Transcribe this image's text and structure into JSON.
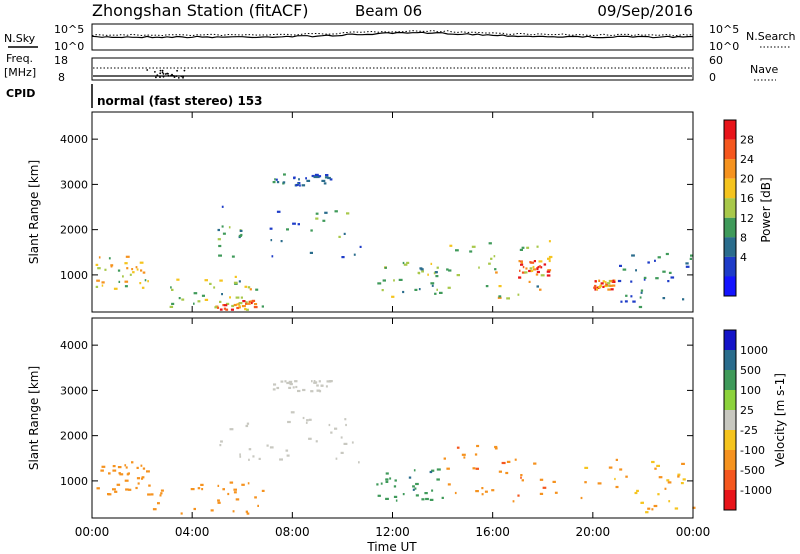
{
  "header": {
    "station": "Zhongshan Station (fitACF)",
    "beam": "Beam 06",
    "date": "09/Sep/2016"
  },
  "sky_panel": {
    "left_label": "N.Sky",
    "right_label": "N.Search",
    "ytick_top": "10^5",
    "ytick_bottom": "10^0"
  },
  "freq_panel": {
    "label_line1": "Freq.",
    "label_line2": "[MHz]",
    "ytick_top": "18",
    "ytick_bottom": "8",
    "right_label": "Nave",
    "right_tick_top": "60",
    "right_tick_bottom": "0"
  },
  "cpid": {
    "label": "CPID",
    "value": "normal (fast stereo) 153"
  },
  "power_colorbar": {
    "label": "Power [dB]",
    "ticks": [
      "28",
      "24",
      "20",
      "16",
      "12",
      "8",
      "4"
    ],
    "colors": [
      "#e8141a",
      "#f5571e",
      "#f5921e",
      "#f5c41e",
      "#a8c84a",
      "#3f9a5a",
      "#2a6c8c",
      "#1e3cc8",
      "#1414ff"
    ]
  },
  "velocity_colorbar": {
    "label": "Velocity [m s-1]",
    "ticks": [
      "1000",
      "500",
      "100",
      "25",
      "-25",
      "-100",
      "-500",
      "-1000"
    ],
    "colors": [
      "#1414c8",
      "#2a6c8c",
      "#3f9a5a",
      "#8cd23c",
      "#c8c8c0",
      "#f5c41e",
      "#f5921e",
      "#f5571e",
      "#e8141a"
    ]
  },
  "chart_data": {
    "type": "heatmap",
    "x_label": "Time UT",
    "y_label": "Slant Range [km]",
    "x_ticks": [
      "00:00",
      "04:00",
      "08:00",
      "12:00",
      "16:00",
      "20:00",
      "00:00"
    ],
    "x_range_hours": [
      0,
      24
    ],
    "y_ticks": [
      "1000",
      "2000",
      "3000",
      "4000"
    ],
    "y_range_km": [
      180,
      4600
    ],
    "power_regions_dB": [
      {
        "t0": 0.0,
        "t1": 2.2,
        "r0": 700,
        "r1": 1450,
        "value": 16
      },
      {
        "t0": 2.2,
        "t1": 6.8,
        "r0": 300,
        "r1": 1000,
        "value": 14
      },
      {
        "t0": 4.8,
        "t1": 6.5,
        "r0": 250,
        "r1": 450,
        "value": 22
      },
      {
        "t0": 7.2,
        "t1": 9.5,
        "r0": 3000,
        "r1": 3250,
        "value": 6
      },
      {
        "t0": 5.0,
        "t1": 10.8,
        "r0": 1400,
        "r1": 2600,
        "value": 8
      },
      {
        "t0": 11.3,
        "t1": 14.0,
        "r0": 500,
        "r1": 1300,
        "value": 12
      },
      {
        "t0": 14.0,
        "t1": 18.5,
        "r0": 500,
        "r1": 1800,
        "value": 14
      },
      {
        "t0": 17.0,
        "t1": 18.3,
        "r0": 900,
        "r1": 1400,
        "value": 24
      },
      {
        "t0": 20.0,
        "t1": 20.8,
        "r0": 700,
        "r1": 900,
        "value": 24
      },
      {
        "t0": 21.0,
        "t1": 24.0,
        "r0": 300,
        "r1": 1500,
        "value": 6
      }
    ],
    "velocity_regions_ms": [
      {
        "t0": 0.0,
        "t1": 2.2,
        "r0": 700,
        "r1": 1450,
        "value": -300
      },
      {
        "t0": 2.2,
        "t1": 6.8,
        "r0": 300,
        "r1": 1000,
        "value": -200
      },
      {
        "t0": 7.2,
        "t1": 9.5,
        "r0": 3000,
        "r1": 3250,
        "value": 0
      },
      {
        "t0": 5.0,
        "t1": 10.8,
        "r0": 1400,
        "r1": 2600,
        "value": 0
      },
      {
        "t0": 11.3,
        "t1": 14.0,
        "r0": 500,
        "r1": 1300,
        "value": 400
      },
      {
        "t0": 14.0,
        "t1": 18.5,
        "r0": 500,
        "r1": 1800,
        "value": -400
      },
      {
        "t0": 19.5,
        "t1": 24.0,
        "r0": 300,
        "r1": 1500,
        "value": -100
      }
    ]
  }
}
